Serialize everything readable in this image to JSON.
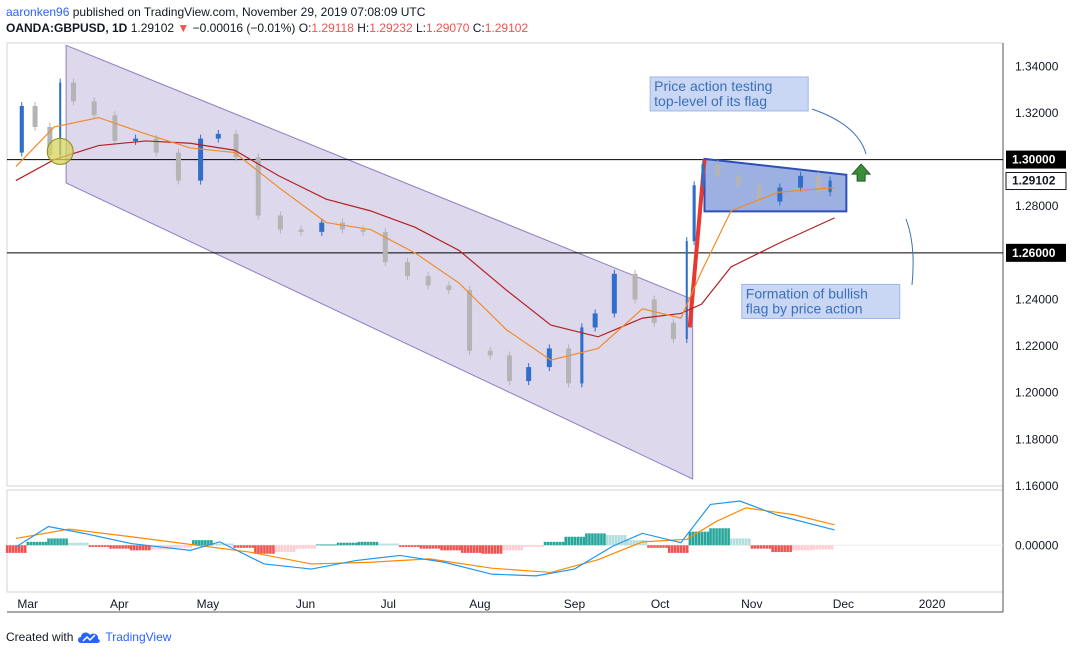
{
  "header": {
    "author": "aaronken96",
    "published_text": "published on TradingView.com, November 29, 2019 07:08:09 UTC",
    "symbol": "OANDA:GBPUSD, 1D",
    "last": "1.29102",
    "change_arrow": "▼",
    "change": "−0.00016 (−0.01%)",
    "o_label": "O:",
    "o_value": "1.29118",
    "h_label": "H:",
    "h_value": "1.29232",
    "l_label": "L:",
    "l_value": "1.29070",
    "c_label": "C:",
    "c_value": "1.29102"
  },
  "footer": {
    "created_with": "Created with",
    "brand": "TradingView",
    "logo_icon": "tradingview-cloud-icon"
  },
  "colors": {
    "up": "#2f6fc9",
    "down": "#b4b4b4",
    "ma_fast": "#f08b2c",
    "ma_slow": "#b22222",
    "channel": "#b5a9d6",
    "flag": "#4a6fc9",
    "pole": "#e8382f",
    "macd": "#2196f3",
    "signal": "#ff8a00",
    "arrow": "#3b8c3b",
    "callout_bg": "#c9d7f5",
    "callout_text": "#3b6fb6"
  },
  "chart_data": {
    "type": "candlestick",
    "ylim": [
      1.16,
      1.35
    ],
    "x_range": [
      "2019-02-22",
      "2020-01-25"
    ],
    "y_ticks": [
      "1.34000",
      "1.32000",
      "1.30000",
      "1.28000",
      "1.26000",
      "1.24000",
      "1.22000",
      "1.20000",
      "1.18000",
      "1.16000"
    ],
    "x_ticks": [
      {
        "label": "Mar",
        "date": "2019-03-01"
      },
      {
        "label": "Apr",
        "date": "2019-04-01"
      },
      {
        "label": "May",
        "date": "2019-05-01"
      },
      {
        "label": "Jun",
        "date": "2019-06-03"
      },
      {
        "label": "Jul",
        "date": "2019-07-01"
      },
      {
        "label": "Aug",
        "date": "2019-08-01"
      },
      {
        "label": "Sep",
        "date": "2019-09-02"
      },
      {
        "label": "Oct",
        "date": "2019-10-01"
      },
      {
        "label": "Nov",
        "date": "2019-11-01"
      },
      {
        "label": "Dec",
        "date": "2019-12-02"
      },
      {
        "label": "2020",
        "date": "2020-01-01"
      }
    ],
    "key_levels": [
      {
        "label": "1.30000",
        "value": 1.3
      },
      {
        "label": "1.26000",
        "value": 1.26
      }
    ],
    "last_price": {
      "label": "1.29102",
      "value": 1.29102
    },
    "close_path": [
      [
        "2019-02-25",
        1.303
      ],
      [
        "2019-03-01",
        1.323
      ],
      [
        "2019-03-06",
        1.314
      ],
      [
        "2019-03-11",
        1.302
      ],
      [
        "2019-03-13",
        1.333
      ],
      [
        "2019-03-20",
        1.325
      ],
      [
        "2019-03-27",
        1.319
      ],
      [
        "2019-04-03",
        1.308
      ],
      [
        "2019-04-10",
        1.309
      ],
      [
        "2019-04-17",
        1.303
      ],
      [
        "2019-04-25",
        1.291
      ],
      [
        "2019-05-02",
        1.309
      ],
      [
        "2019-05-07",
        1.311
      ],
      [
        "2019-05-14",
        1.301
      ],
      [
        "2019-05-22",
        1.276
      ],
      [
        "2019-05-29",
        1.27
      ],
      [
        "2019-06-05",
        1.269
      ],
      [
        "2019-06-12",
        1.273
      ],
      [
        "2019-06-19",
        1.27
      ],
      [
        "2019-06-26",
        1.269
      ],
      [
        "2019-07-04",
        1.256
      ],
      [
        "2019-07-11",
        1.25
      ],
      [
        "2019-07-18",
        1.246
      ],
      [
        "2019-07-25",
        1.244
      ],
      [
        "2019-08-01",
        1.218
      ],
      [
        "2019-08-08",
        1.216
      ],
      [
        "2019-08-14",
        1.205
      ],
      [
        "2019-08-21",
        1.211
      ],
      [
        "2019-08-28",
        1.219
      ],
      [
        "2019-09-03",
        1.204
      ],
      [
        "2019-09-06",
        1.228
      ],
      [
        "2019-09-12",
        1.234
      ],
      [
        "2019-09-19",
        1.251
      ],
      [
        "2019-09-26",
        1.24
      ],
      [
        "2019-10-02",
        1.23
      ],
      [
        "2019-10-09",
        1.223
      ],
      [
        "2019-10-11",
        1.265
      ],
      [
        "2019-10-14",
        1.289
      ],
      [
        "2019-10-17",
        1.298
      ],
      [
        "2019-10-24",
        1.293
      ],
      [
        "2019-10-31",
        1.289
      ],
      [
        "2019-11-07",
        1.282
      ],
      [
        "2019-11-14",
        1.288
      ],
      [
        "2019-11-21",
        1.293
      ],
      [
        "2019-11-26",
        1.286
      ],
      [
        "2019-11-29",
        1.291
      ]
    ],
    "ma_fast": [
      [
        "2019-02-25",
        1.297
      ],
      [
        "2019-03-10",
        1.314
      ],
      [
        "2019-03-25",
        1.318
      ],
      [
        "2019-04-10",
        1.311
      ],
      [
        "2019-04-25",
        1.305
      ],
      [
        "2019-05-10",
        1.303
      ],
      [
        "2019-05-25",
        1.288
      ],
      [
        "2019-06-10",
        1.273
      ],
      [
        "2019-06-25",
        1.27
      ],
      [
        "2019-07-10",
        1.26
      ],
      [
        "2019-07-25",
        1.247
      ],
      [
        "2019-08-10",
        1.227
      ],
      [
        "2019-08-25",
        1.214
      ],
      [
        "2019-09-10",
        1.219
      ],
      [
        "2019-09-25",
        1.236
      ],
      [
        "2019-10-08",
        1.232
      ],
      [
        "2019-10-15",
        1.252
      ],
      [
        "2019-10-25",
        1.278
      ],
      [
        "2019-11-10",
        1.286
      ],
      [
        "2019-11-29",
        1.288
      ]
    ],
    "ma_slow": [
      [
        "2019-02-25",
        1.291
      ],
      [
        "2019-03-10",
        1.3
      ],
      [
        "2019-03-25",
        1.306
      ],
      [
        "2019-04-10",
        1.308
      ],
      [
        "2019-04-25",
        1.307
      ],
      [
        "2019-05-10",
        1.304
      ],
      [
        "2019-05-25",
        1.293
      ],
      [
        "2019-06-10",
        1.283
      ],
      [
        "2019-06-25",
        1.278
      ],
      [
        "2019-07-10",
        1.271
      ],
      [
        "2019-07-25",
        1.261
      ],
      [
        "2019-08-10",
        1.244
      ],
      [
        "2019-08-25",
        1.229
      ],
      [
        "2019-09-10",
        1.224
      ],
      [
        "2019-09-25",
        1.232
      ],
      [
        "2019-10-08",
        1.234
      ],
      [
        "2019-10-15",
        1.238
      ],
      [
        "2019-10-25",
        1.254
      ],
      [
        "2019-11-10",
        1.264
      ],
      [
        "2019-11-29",
        1.275
      ]
    ],
    "channel": [
      [
        "2019-03-14",
        1.349
      ],
      [
        "2019-10-12",
        1.24
      ],
      [
        "2019-10-12",
        1.163
      ],
      [
        "2019-03-14",
        1.29
      ]
    ],
    "flag": [
      [
        "2019-10-16",
        1.3003
      ],
      [
        "2019-12-03",
        1.2935
      ],
      [
        "2019-12-03",
        1.2778
      ],
      [
        "2019-10-16",
        1.2778
      ]
    ],
    "flagpole": [
      [
        "2019-10-11",
        1.228
      ],
      [
        "2019-10-16",
        1.3
      ]
    ],
    "ellipse": {
      "date": "2019-03-12",
      "value": 1.3035
    },
    "breakout_arrow": {
      "date": "2019-12-08",
      "value": 1.2925
    },
    "callouts": [
      {
        "text": "Price action testing top-level of its flag",
        "date": "2019-10-01",
        "value": 1.326
      },
      {
        "text": "Formation of bullish flag by price action",
        "date": "2019-11-01",
        "value": 1.237
      }
    ],
    "macd": {
      "ylim": [
        -0.0055,
        0.0065
      ],
      "zero_label": "0.00000",
      "macd_line": [
        [
          "2019-02-25",
          -0.0002
        ],
        [
          "2019-03-08",
          0.0022
        ],
        [
          "2019-03-20",
          0.0014
        ],
        [
          "2019-04-05",
          0.0002
        ],
        [
          "2019-04-25",
          -0.0006
        ],
        [
          "2019-05-05",
          0.0004
        ],
        [
          "2019-05-20",
          -0.0022
        ],
        [
          "2019-06-05",
          -0.0028
        ],
        [
          "2019-06-20",
          -0.0018
        ],
        [
          "2019-07-05",
          -0.0012
        ],
        [
          "2019-07-20",
          -0.002
        ],
        [
          "2019-08-05",
          -0.0034
        ],
        [
          "2019-08-20",
          -0.0036
        ],
        [
          "2019-09-02",
          -0.0028
        ],
        [
          "2019-09-15",
          -0.0001
        ],
        [
          "2019-09-25",
          0.0014
        ],
        [
          "2019-10-08",
          0.0003
        ],
        [
          "2019-10-18",
          0.0048
        ],
        [
          "2019-10-28",
          0.0052
        ],
        [
          "2019-11-10",
          0.0035
        ],
        [
          "2019-11-29",
          0.0018
        ]
      ],
      "signal_line": [
        [
          "2019-02-25",
          0.0008
        ],
        [
          "2019-03-15",
          0.0019
        ],
        [
          "2019-04-05",
          0.001
        ],
        [
          "2019-04-25",
          0.0001
        ],
        [
          "2019-05-15",
          -0.0008
        ],
        [
          "2019-06-05",
          -0.0022
        ],
        [
          "2019-06-25",
          -0.002
        ],
        [
          "2019-07-15",
          -0.0016
        ],
        [
          "2019-08-05",
          -0.0027
        ],
        [
          "2019-08-25",
          -0.0032
        ],
        [
          "2019-09-10",
          -0.0017
        ],
        [
          "2019-09-25",
          0.0004
        ],
        [
          "2019-10-10",
          0.0007
        ],
        [
          "2019-10-20",
          0.0028
        ],
        [
          "2019-10-30",
          0.0044
        ],
        [
          "2019-11-15",
          0.0036
        ],
        [
          "2019-11-29",
          0.0024
        ]
      ],
      "histogram": [
        [
          "2019-02-25",
          -0.0009
        ],
        [
          "2019-03-04",
          0.0004
        ],
        [
          "2019-03-11",
          0.0008
        ],
        [
          "2019-03-18",
          0.0003
        ],
        [
          "2019-03-25",
          -0.0002
        ],
        [
          "2019-04-01",
          -0.0004
        ],
        [
          "2019-04-08",
          -0.0006
        ],
        [
          "2019-04-15",
          -0.0005
        ],
        [
          "2019-04-22",
          -0.0003
        ],
        [
          "2019-04-29",
          0.0006
        ],
        [
          "2019-05-06",
          0.0002
        ],
        [
          "2019-05-13",
          -0.0003
        ],
        [
          "2019-05-20",
          -0.001
        ],
        [
          "2019-05-27",
          -0.0008
        ],
        [
          "2019-06-03",
          -0.0004
        ],
        [
          "2019-06-10",
          0.0001
        ],
        [
          "2019-06-17",
          0.0003
        ],
        [
          "2019-06-24",
          0.0004
        ],
        [
          "2019-07-01",
          0.0002
        ],
        [
          "2019-07-08",
          -0.0002
        ],
        [
          "2019-07-15",
          -0.0004
        ],
        [
          "2019-07-22",
          -0.0006
        ],
        [
          "2019-07-29",
          -0.0009
        ],
        [
          "2019-08-05",
          -0.001
        ],
        [
          "2019-08-12",
          -0.0006
        ],
        [
          "2019-08-19",
          -0.0002
        ],
        [
          "2019-08-26",
          0.0004
        ],
        [
          "2019-09-02",
          0.001
        ],
        [
          "2019-09-09",
          0.0014
        ],
        [
          "2019-09-16",
          0.0012
        ],
        [
          "2019-09-23",
          0.0006
        ],
        [
          "2019-09-30",
          -0.0003
        ],
        [
          "2019-10-07",
          -0.0009
        ],
        [
          "2019-10-14",
          0.0016
        ],
        [
          "2019-10-21",
          0.002
        ],
        [
          "2019-10-28",
          0.0008
        ],
        [
          "2019-11-04",
          -0.0004
        ],
        [
          "2019-11-11",
          -0.0008
        ],
        [
          "2019-11-18",
          -0.0006
        ],
        [
          "2019-11-25",
          -0.0005
        ]
      ]
    }
  }
}
